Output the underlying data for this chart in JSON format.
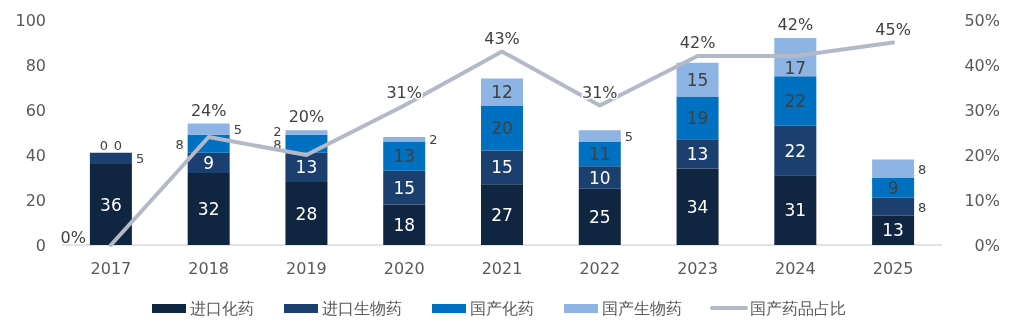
{
  "chart_data": {
    "type": "bar",
    "stacked": true,
    "categories": [
      "2017",
      "2018",
      "2019",
      "2020",
      "2021",
      "2022",
      "2023",
      "2024",
      "2025"
    ],
    "series": [
      {
        "name": "进口化药",
        "color": "#0f2540",
        "values": [
          36,
          32,
          28,
          18,
          27,
          25,
          34,
          31,
          13
        ]
      },
      {
        "name": "进口生物药",
        "color": "#1b3f6e",
        "values": [
          5,
          9,
          13,
          15,
          15,
          10,
          13,
          22,
          8
        ]
      },
      {
        "name": "国产化药",
        "color": "#0070c0",
        "values": [
          0,
          8,
          8,
          13,
          20,
          11,
          19,
          22,
          9
        ]
      },
      {
        "name": "国产生物药",
        "color": "#8db4e2",
        "values": [
          0,
          5,
          2,
          2,
          12,
          5,
          15,
          17,
          8
        ]
      },
      {
        "name": "国产药品占比",
        "type": "line",
        "axis": "y2",
        "color": "#b4b9c7",
        "values": [
          0,
          24,
          20,
          31,
          43,
          31,
          42,
          42,
          45
        ],
        "value_labels": [
          "0%",
          "24%",
          "20%",
          "31%",
          "43%",
          "31%",
          "42%",
          "42%",
          "45%"
        ]
      }
    ],
    "data_labels": true,
    "ylim": [
      0,
      100
    ],
    "yticks": [
      0,
      20,
      40,
      60,
      80,
      100
    ],
    "y2lim": [
      0,
      50
    ],
    "y2ticks": [
      {
        "value": 0,
        "label": "0%"
      },
      {
        "value": 10,
        "label": "10%"
      },
      {
        "value": 20,
        "label": "20%"
      },
      {
        "value": 30,
        "label": "30%"
      },
      {
        "value": 40,
        "label": "40%"
      },
      {
        "value": 50,
        "label": "50%"
      }
    ],
    "grid": false,
    "legend": "bottom"
  }
}
